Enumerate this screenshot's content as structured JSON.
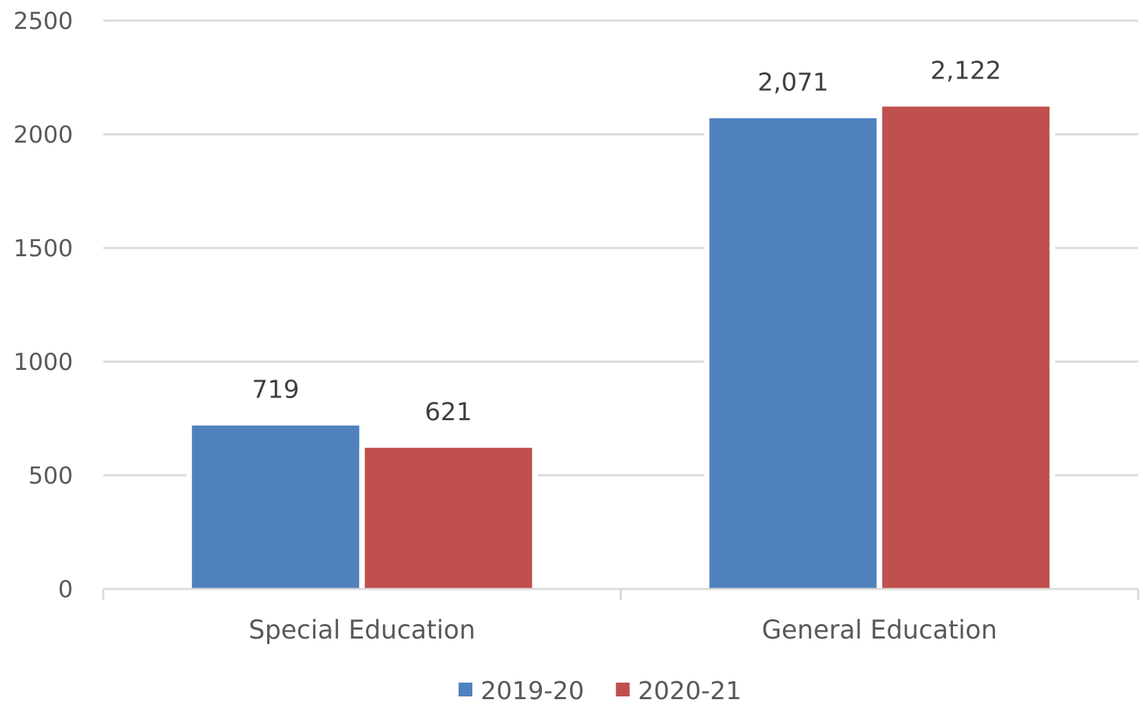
{
  "chart_data": {
    "type": "bar",
    "categories": [
      "Special Education",
      "General Education"
    ],
    "series": [
      {
        "name": "2019-20",
        "values": [
          719,
          2071
        ],
        "labels": [
          "719",
          "2,071"
        ],
        "color": "#4f81bd"
      },
      {
        "name": "2020-21",
        "values": [
          621,
          2122
        ],
        "labels": [
          "621",
          "2,122"
        ],
        "color": "#c0504d"
      }
    ],
    "title": "",
    "xlabel": "",
    "ylabel": "",
    "ylim": [
      0,
      2500
    ],
    "yticks": [
      0,
      500,
      1000,
      1500,
      2000,
      2500
    ],
    "grid": true,
    "legend_position": "bottom"
  }
}
